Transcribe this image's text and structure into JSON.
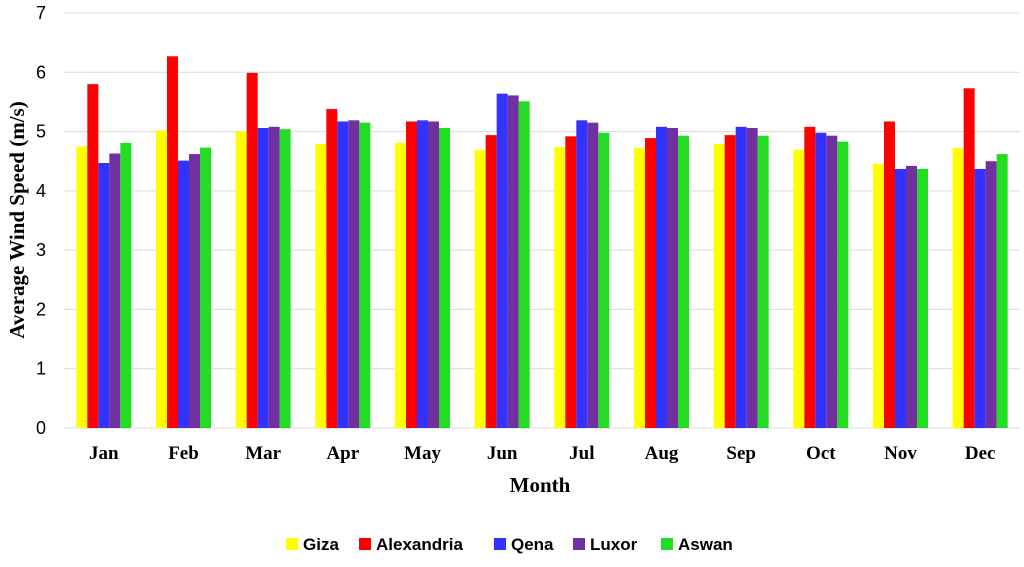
{
  "chart_data": {
    "type": "bar",
    "xlabel": "Month",
    "ylabel": "Average Wind Speed (m/s)",
    "ylim": [
      0,
      7
    ],
    "yticks": [
      "0",
      "1",
      "2",
      "3",
      "4",
      "5",
      "6",
      "7"
    ],
    "grid": true,
    "legend_position": "bottom",
    "categories": [
      "Jan",
      "Feb",
      "Mar",
      "Apr",
      "May",
      "Jun",
      "Jul",
      "Aug",
      "Sep",
      "Oct",
      "Nov",
      "Dec"
    ],
    "series": [
      {
        "name": "Giza",
        "color": "#ffff00",
        "values": [
          4.75,
          5.02,
          5.0,
          4.79,
          4.81,
          4.69,
          4.74,
          4.72,
          4.79,
          4.69,
          4.45,
          4.72
        ]
      },
      {
        "name": "Alexandria",
        "color": "#ff0000",
        "values": [
          5.8,
          6.27,
          5.99,
          5.38,
          5.17,
          4.94,
          4.92,
          4.89,
          4.94,
          5.08,
          5.17,
          5.73
        ]
      },
      {
        "name": "Qena",
        "color": "#3333ff",
        "values": [
          4.47,
          4.51,
          5.06,
          5.17,
          5.19,
          5.64,
          5.19,
          5.08,
          5.08,
          4.98,
          4.37,
          4.37
        ]
      },
      {
        "name": "Luxor",
        "color": "#7030a0",
        "values": [
          4.63,
          4.62,
          5.08,
          5.19,
          5.17,
          5.61,
          5.15,
          5.06,
          5.06,
          4.93,
          4.42,
          4.5
        ]
      },
      {
        "name": "Aswan",
        "color": "#22dd22",
        "values": [
          4.81,
          4.73,
          5.04,
          5.15,
          5.06,
          5.51,
          4.98,
          4.93,
          4.93,
          4.83,
          4.37,
          4.62
        ]
      }
    ]
  }
}
